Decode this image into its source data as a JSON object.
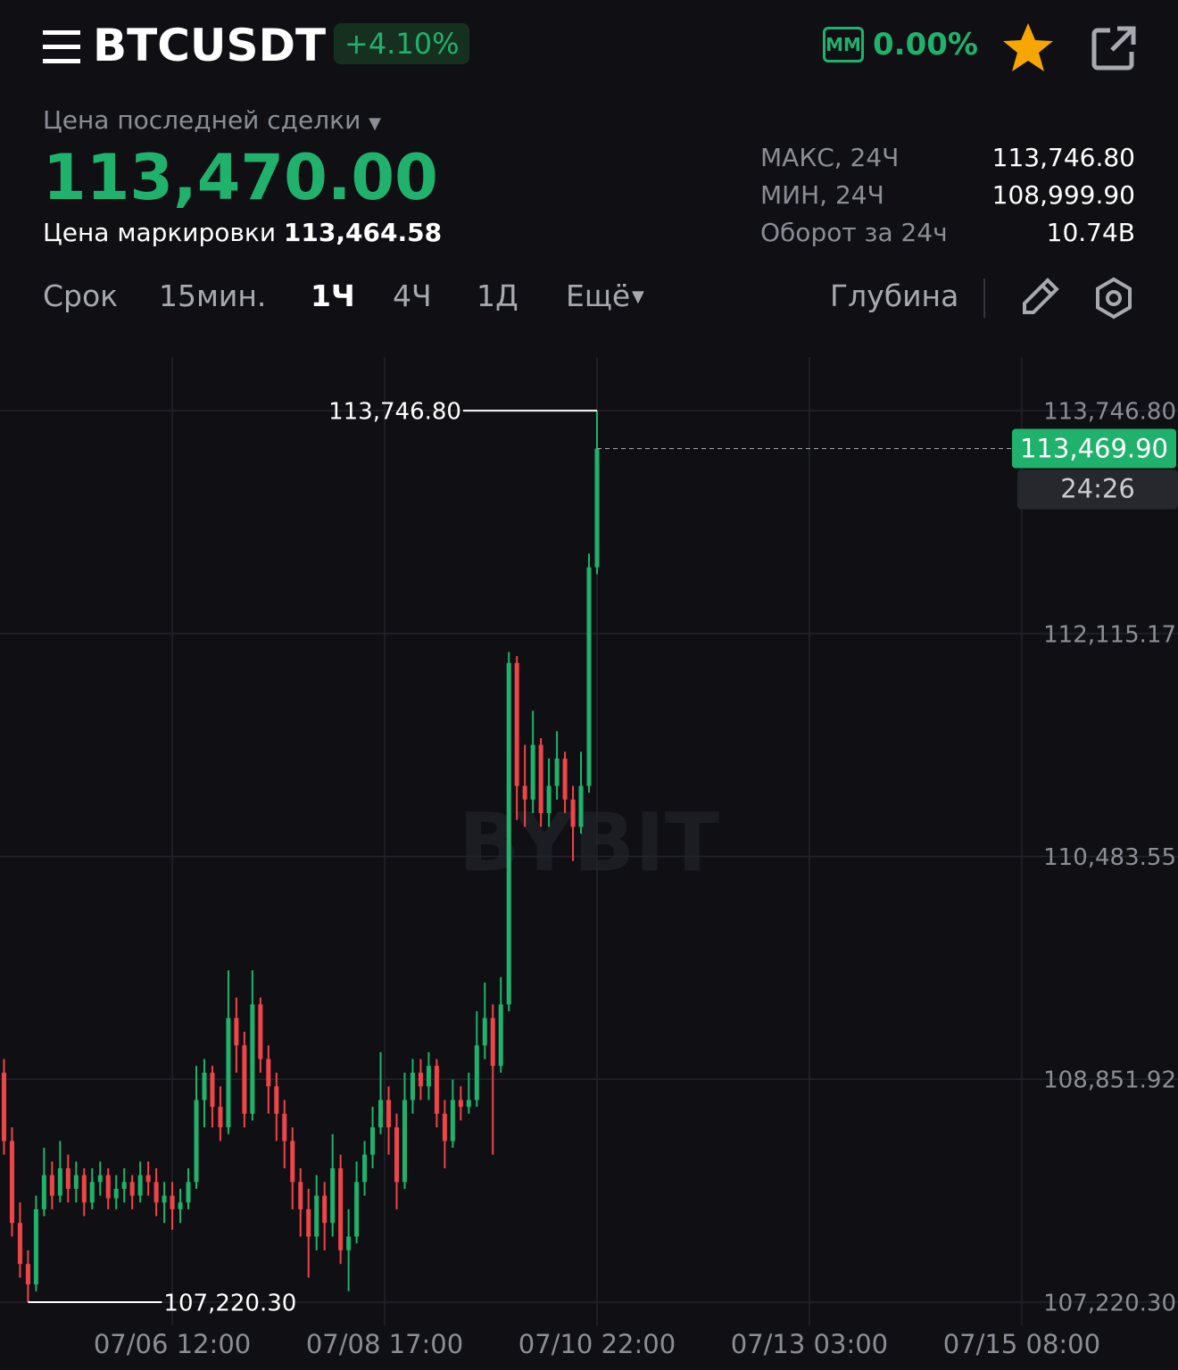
{
  "header": {
    "symbol": "BTCUSDT",
    "change": "+4.10%",
    "mm_badge": "MM",
    "mm_value": "0.00%"
  },
  "price": {
    "label": "Цена последней сделки",
    "last": "113,470.00",
    "mark_label": "Цена маркировки",
    "mark": "113,464.58"
  },
  "stats": [
    {
      "label": "МАКС, 24Ч",
      "value": "113,746.80"
    },
    {
      "label": "МИН, 24Ч",
      "value": "108,999.90"
    },
    {
      "label": "Оборот за 24ч",
      "value": "10.74B"
    }
  ],
  "tabs": [
    "Срок",
    "15мин.",
    "1Ч",
    "4Ч",
    "1Д",
    "Ещё"
  ],
  "depth": "Глубина",
  "chart_data": {
    "type": "candlestick",
    "watermark": "BYBIT",
    "up_color": "#20b26c",
    "down_color": "#ef454a",
    "x": [
      "07/04 18:00",
      "07/04 20:00",
      "07/04 22:00",
      "07/05 00:00",
      "07/05 02:00",
      "07/05 04:00",
      "07/05 06:00",
      "07/05 08:00",
      "07/05 10:00",
      "07/05 12:00",
      "07/05 14:00",
      "07/05 16:00",
      "07/05 18:00",
      "07/05 20:00",
      "07/05 22:00",
      "07/06 00:00",
      "07/06 02:00",
      "07/06 04:00",
      "07/06 06:00",
      "07/06 08:00",
      "07/06 10:00",
      "07/06 12:00",
      "07/06 14:00",
      "07/06 16:00",
      "07/06 18:00",
      "07/06 20:00",
      "07/06 22:00",
      "07/07 00:00",
      "07/07 02:00",
      "07/07 04:00",
      "07/07 06:00",
      "07/07 08:00",
      "07/07 10:00",
      "07/07 12:00",
      "07/07 14:00",
      "07/07 16:00",
      "07/07 18:00",
      "07/07 20:00",
      "07/07 22:00",
      "07/08 00:00",
      "07/08 02:00",
      "07/08 04:00",
      "07/08 06:00",
      "07/08 08:00",
      "07/08 10:00",
      "07/08 12:00",
      "07/08 14:00",
      "07/08 16:00",
      "07/08 18:00",
      "07/08 20:00",
      "07/08 22:00",
      "07/09 00:00",
      "07/09 02:00",
      "07/09 04:00",
      "07/09 06:00",
      "07/09 08:00",
      "07/09 10:00",
      "07/09 12:00",
      "07/09 14:00",
      "07/09 16:00",
      "07/09 18:00",
      "07/09 20:00",
      "07/09 22:00",
      "07/10 00:00",
      "07/10 02:00",
      "07/10 04:00",
      "07/10 06:00",
      "07/10 08:00",
      "07/10 10:00",
      "07/10 12:00",
      "07/10 14:00",
      "07/10 16:00",
      "07/10 18:00",
      "07/10 20:00",
      "07/10 22:00"
    ],
    "candles": [
      [
        108900,
        109000,
        108300,
        108400
      ],
      [
        108400,
        108500,
        107700,
        107800
      ],
      [
        107800,
        107950,
        107400,
        107500
      ],
      [
        107500,
        107600,
        107220.3,
        107350
      ],
      [
        107350,
        108000,
        107300,
        107900
      ],
      [
        107900,
        108350,
        107850,
        108150
      ],
      [
        108150,
        108250,
        107900,
        108000
      ],
      [
        108000,
        108400,
        107950,
        108200
      ],
      [
        108200,
        108300,
        107950,
        108050
      ],
      [
        108050,
        108250,
        107950,
        108150
      ],
      [
        108150,
        108200,
        107850,
        107950
      ],
      [
        107950,
        108200,
        107900,
        108100
      ],
      [
        108100,
        108250,
        108000,
        108150
      ],
      [
        108150,
        108200,
        107900,
        107980
      ],
      [
        107980,
        108150,
        107900,
        108050
      ],
      [
        108050,
        108200,
        107950,
        108100
      ],
      [
        108100,
        108150,
        107900,
        108000
      ],
      [
        108000,
        108250,
        107950,
        108150
      ],
      [
        108150,
        108250,
        108000,
        108100
      ],
      [
        108100,
        108200,
        107850,
        107950
      ],
      [
        107950,
        108100,
        107800,
        108000
      ],
      [
        108000,
        108100,
        107750,
        107900
      ],
      [
        107900,
        108050,
        107800,
        107950
      ],
      [
        107950,
        108200,
        107900,
        108100
      ],
      [
        108100,
        108950,
        108050,
        108700
      ],
      [
        108700,
        109000,
        108500,
        108900
      ],
      [
        108900,
        108950,
        108500,
        108650
      ],
      [
        108650,
        108800,
        108400,
        108500
      ],
      [
        108500,
        109650,
        108450,
        109300
      ],
      [
        109300,
        109450,
        108900,
        109100
      ],
      [
        109100,
        109200,
        108500,
        108600
      ],
      [
        108600,
        109650,
        108550,
        109400
      ],
      [
        109400,
        109450,
        108900,
        109000
      ],
      [
        109000,
        109100,
        108600,
        108800
      ],
      [
        108800,
        108900,
        108400,
        108600
      ],
      [
        108600,
        108700,
        108200,
        108400
      ],
      [
        108400,
        108500,
        107900,
        108100
      ],
      [
        108100,
        108200,
        107700,
        107900
      ],
      [
        107900,
        108050,
        107400,
        107700
      ],
      [
        107700,
        108150,
        107600,
        108000
      ],
      [
        108000,
        108100,
        107600,
        107800
      ],
      [
        107800,
        108450,
        107700,
        108200
      ],
      [
        108200,
        108300,
        107500,
        107600
      ],
      [
        107600,
        107900,
        107300,
        107700
      ],
      [
        107700,
        108250,
        107650,
        108100
      ],
      [
        108100,
        108400,
        108000,
        108300
      ],
      [
        108300,
        108650,
        108200,
        108500
      ],
      [
        108500,
        109050,
        108450,
        108700
      ],
      [
        108700,
        108800,
        108300,
        108500
      ],
      [
        108500,
        108600,
        107900,
        108100
      ],
      [
        108100,
        108900,
        108050,
        108700
      ],
      [
        108700,
        109000,
        108600,
        108900
      ],
      [
        108900,
        109000,
        108700,
        108800
      ],
      [
        108800,
        109050,
        108700,
        108950
      ],
      [
        108950,
        109000,
        108500,
        108600
      ],
      [
        108600,
        108700,
        108200,
        108400
      ],
      [
        108400,
        108850,
        108350,
        108700
      ],
      [
        108700,
        108800,
        108550,
        108650
      ],
      [
        108650,
        108900,
        108600,
        108700
      ],
      [
        108700,
        109350,
        108650,
        109100
      ],
      [
        109100,
        109560,
        109000,
        109300
      ],
      [
        109300,
        109400,
        108300,
        108950
      ],
      [
        108950,
        109600,
        108900,
        109400
      ],
      [
        109400,
        111980,
        109350,
        111900
      ],
      [
        111900,
        111950,
        110750,
        111000
      ],
      [
        111000,
        111300,
        110700,
        110900
      ],
      [
        110900,
        111550,
        110800,
        111300
      ],
      [
        111300,
        111350,
        110700,
        110800
      ],
      [
        110800,
        111200,
        110700,
        111000
      ],
      [
        111000,
        111400,
        110900,
        111200
      ],
      [
        111200,
        111250,
        110800,
        110900
      ],
      [
        110900,
        111000,
        110450,
        110700
      ],
      [
        110700,
        111250,
        110650,
        111000
      ],
      [
        111000,
        112700,
        110950,
        112600
      ],
      [
        112600,
        113746.8,
        112550,
        113469.9
      ]
    ],
    "ylim": [
      107050,
      114140
    ],
    "yticks": [
      {
        "value": 113746.8,
        "label": "113,746.80"
      },
      {
        "value": 112115.17,
        "label": "112,115.17"
      },
      {
        "value": 110483.55,
        "label": "110,483.55"
      },
      {
        "value": 108851.92,
        "label": "108,851.92"
      },
      {
        "value": 107220.3,
        "label": "107,220.30"
      }
    ],
    "xlim": [
      "07/04 17:00",
      "07/16 23:00"
    ],
    "xticks": [
      "07/06 12:00",
      "07/08 17:00",
      "07/10 22:00",
      "07/13 03:00",
      "07/15 08:00"
    ],
    "annotations": [
      {
        "x": "07/10 22:00",
        "value": 113746.8,
        "label": "113,746.80"
      },
      {
        "x": "07/05 00:00",
        "value": 107220.3,
        "label": "107,220.30"
      }
    ],
    "last_price": {
      "value": 113469.9,
      "label": "113,469.90",
      "countdown": "24:26"
    },
    "grid": true
  }
}
